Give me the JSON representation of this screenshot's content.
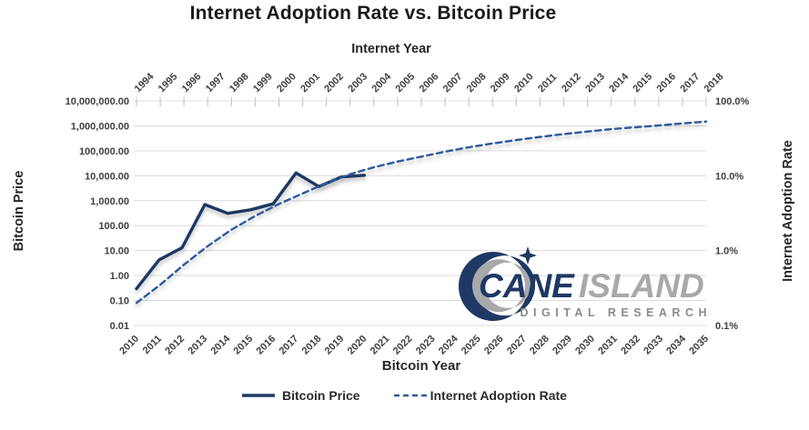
{
  "title": "Internet Adoption Rate vs. Bitcoin Price",
  "colors": {
    "bitcoin_line": "#1f3864",
    "internet_line": "#2e5a9c",
    "gridline": "#dcdcdc",
    "axis_tick_mark": "#c0c0c0",
    "tick_text": "#3f3f3f",
    "title_text": "#1a1a1a",
    "logo_navy": "#1f3864",
    "logo_silver": "#a7a9ac",
    "logo_gray": "#8a8a8a"
  },
  "chart_data": {
    "type": "line",
    "title": "Internet Adoption Rate vs. Bitcoin Price",
    "grid": "horizontal",
    "legend_position": "bottom",
    "top_axis": {
      "label": "Internet Year",
      "ticks": [
        "1994",
        "1995",
        "1996",
        "1997",
        "1998",
        "1999",
        "2000",
        "2001",
        "2002",
        "2003",
        "2004",
        "2005",
        "2006",
        "2007",
        "2008",
        "2009",
        "2010",
        "2011",
        "2012",
        "2013",
        "2014",
        "2015",
        "2016",
        "2017",
        "2018"
      ]
    },
    "bottom_axis": {
      "label": "Bitcoin Year",
      "ticks": [
        "2010",
        "2011",
        "2012",
        "2013",
        "2014",
        "2015",
        "2016",
        "2017",
        "2018",
        "2019",
        "2020",
        "2021",
        "2022",
        "2023",
        "2024",
        "2025",
        "2026",
        "2027",
        "2028",
        "2029",
        "2030",
        "2031",
        "2032",
        "2033",
        "2034",
        "2035"
      ]
    },
    "left_axis": {
      "label": "Bitcoin Price",
      "scale": "log",
      "min": 0.01,
      "max": 10000000,
      "tick_labels": [
        "10,000,000.00",
        "1,000,000.00",
        "100,000.00",
        "10,000.00",
        "1,000.00",
        "100.00",
        "10.00",
        "1.00",
        "0.10",
        "0.01"
      ]
    },
    "right_axis": {
      "label": "Internet Adoption Rate",
      "scale": "log",
      "min_percent": 0.1,
      "max_percent": 100,
      "tick_labels": [
        "100.0%",
        "10.0%",
        "1.0%",
        "0.1%"
      ]
    },
    "series": [
      {
        "name": "Bitcoin Price",
        "line_style": "solid",
        "color": "#1f3864",
        "x_axis": "bottom",
        "y_axis": "left",
        "x": [
          2010,
          2011,
          2012,
          2013,
          2014,
          2015,
          2016,
          2017,
          2018,
          2019,
          2020
        ],
        "values": [
          0.3,
          4.3,
          13,
          700,
          310,
          430,
          750,
          13000,
          3700,
          9000,
          10500
        ]
      },
      {
        "name": "Internet Adoption Rate",
        "line_style": "dashed",
        "color": "#2e5a9c",
        "x_axis": "top",
        "y_axis": "right",
        "x": [
          1994,
          1995,
          1996,
          1997,
          1998,
          1999,
          2000,
          2001,
          2002,
          2003,
          2004,
          2005,
          2006,
          2007,
          2008,
          2009,
          2010,
          2011,
          2012,
          2013,
          2014,
          2015,
          2016,
          2017,
          2018
        ],
        "values": [
          0.2,
          0.35,
          0.65,
          1.15,
          1.9,
          2.9,
          4.2,
          5.8,
          8,
          10.5,
          13,
          15.5,
          18,
          21,
          24,
          27,
          30,
          33,
          36,
          39,
          42,
          44.5,
          47,
          50,
          53
        ]
      }
    ],
    "watermark": {
      "brand_primary": "CANE",
      "brand_secondary": "ISLAND",
      "subtitle": "DIGITAL RESEARCH"
    }
  }
}
